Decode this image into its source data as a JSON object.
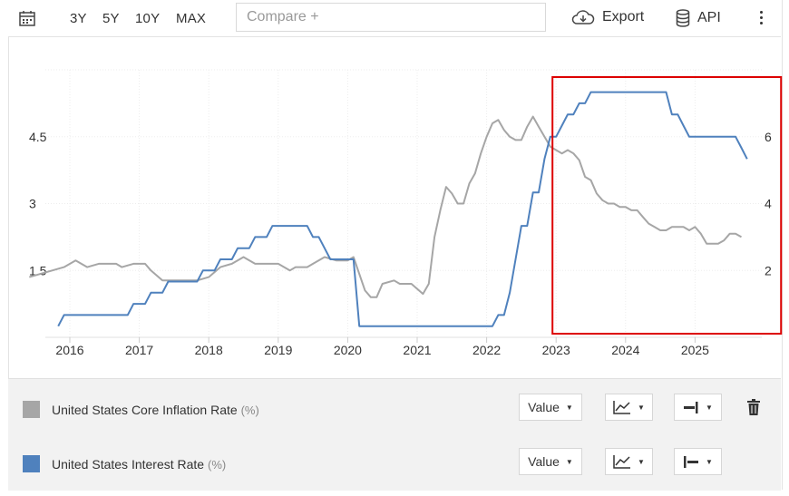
{
  "toolbar": {
    "ranges": [
      "3Y",
      "5Y",
      "10Y",
      "MAX"
    ],
    "compare_placeholder": "Compare +",
    "export_label": "Export",
    "api_label": "API"
  },
  "legend": {
    "series": [
      {
        "name": "United States Core Inflation Rate",
        "unit": "(%)",
        "color": "#a6a6a6",
        "value_label": "Value"
      },
      {
        "name": "United States Interest Rate",
        "unit": "(%)",
        "color": "#4f81bd",
        "value_label": "Value"
      }
    ]
  },
  "highlight_color": "#dd0000",
  "chart_data": {
    "type": "line",
    "x_ticks": [
      "2016",
      "2017",
      "2018",
      "2019",
      "2020",
      "2021",
      "2022",
      "2023",
      "2024",
      "2025"
    ],
    "left_axis": {
      "ticks": [
        "1.5",
        "3",
        "4.5"
      ],
      "range": [
        0,
        6
      ]
    },
    "right_axis": {
      "ticks": [
        "2",
        "4",
        "6"
      ],
      "range": [
        0,
        8
      ]
    },
    "grid": true,
    "highlight_box": {
      "from": "2023-01",
      "to": "2025-11"
    },
    "series": [
      {
        "name": "United States Core Inflation Rate",
        "axis": "right",
        "color": "#a6a6a6",
        "points": [
          [
            "2015-06",
            1.8
          ],
          [
            "2015-12",
            2.1
          ],
          [
            "2016-02",
            2.3
          ],
          [
            "2016-04",
            2.1
          ],
          [
            "2016-06",
            2.2
          ],
          [
            "2016-09",
            2.2
          ],
          [
            "2016-10",
            2.1
          ],
          [
            "2016-12",
            2.2
          ],
          [
            "2017-02",
            2.2
          ],
          [
            "2017-03",
            2.0
          ],
          [
            "2017-05",
            1.7
          ],
          [
            "2017-07",
            1.7
          ],
          [
            "2017-09",
            1.7
          ],
          [
            "2017-11",
            1.7
          ],
          [
            "2018-01",
            1.8
          ],
          [
            "2018-03",
            2.1
          ],
          [
            "2018-05",
            2.2
          ],
          [
            "2018-07",
            2.4
          ],
          [
            "2018-09",
            2.2
          ],
          [
            "2018-11",
            2.2
          ],
          [
            "2019-01",
            2.2
          ],
          [
            "2019-03",
            2.0
          ],
          [
            "2019-04",
            2.1
          ],
          [
            "2019-06",
            2.1
          ],
          [
            "2019-07",
            2.2
          ],
          [
            "2019-09",
            2.4
          ],
          [
            "2019-11",
            2.3
          ],
          [
            "2020-01",
            2.3
          ],
          [
            "2020-02",
            2.4
          ],
          [
            "2020-04",
            1.4
          ],
          [
            "2020-05",
            1.2
          ],
          [
            "2020-06",
            1.2
          ],
          [
            "2020-07",
            1.6
          ],
          [
            "2020-09",
            1.7
          ],
          [
            "2020-10",
            1.6
          ],
          [
            "2020-12",
            1.6
          ],
          [
            "2021-02",
            1.3
          ],
          [
            "2021-03",
            1.6
          ],
          [
            "2021-04",
            3.0
          ],
          [
            "2021-05",
            3.8
          ],
          [
            "2021-06",
            4.5
          ],
          [
            "2021-07",
            4.3
          ],
          [
            "2021-08",
            4.0
          ],
          [
            "2021-09",
            4.0
          ],
          [
            "2021-10",
            4.6
          ],
          [
            "2021-11",
            4.9
          ],
          [
            "2021-12",
            5.5
          ],
          [
            "2022-01",
            6.0
          ],
          [
            "2022-02",
            6.4
          ],
          [
            "2022-03",
            6.5
          ],
          [
            "2022-04",
            6.2
          ],
          [
            "2022-05",
            6.0
          ],
          [
            "2022-06",
            5.9
          ],
          [
            "2022-07",
            5.9
          ],
          [
            "2022-08",
            6.3
          ],
          [
            "2022-09",
            6.6
          ],
          [
            "2022-10",
            6.3
          ],
          [
            "2022-11",
            6.0
          ],
          [
            "2022-12",
            5.7
          ],
          [
            "2023-01",
            5.6
          ],
          [
            "2023-02",
            5.5
          ],
          [
            "2023-03",
            5.6
          ],
          [
            "2023-04",
            5.5
          ],
          [
            "2023-05",
            5.3
          ],
          [
            "2023-06",
            4.8
          ],
          [
            "2023-07",
            4.7
          ],
          [
            "2023-08",
            4.3
          ],
          [
            "2023-09",
            4.1
          ],
          [
            "2023-10",
            4.0
          ],
          [
            "2023-11",
            4.0
          ],
          [
            "2023-12",
            3.9
          ],
          [
            "2024-01",
            3.9
          ],
          [
            "2024-02",
            3.8
          ],
          [
            "2024-03",
            3.8
          ],
          [
            "2024-04",
            3.6
          ],
          [
            "2024-05",
            3.4
          ],
          [
            "2024-06",
            3.3
          ],
          [
            "2024-07",
            3.2
          ],
          [
            "2024-08",
            3.2
          ],
          [
            "2024-09",
            3.3
          ],
          [
            "2024-10",
            3.3
          ],
          [
            "2024-11",
            3.3
          ],
          [
            "2024-12",
            3.2
          ],
          [
            "2025-01",
            3.3
          ],
          [
            "2025-02",
            3.1
          ],
          [
            "2025-03",
            2.8
          ],
          [
            "2025-04",
            2.8
          ],
          [
            "2025-05",
            2.8
          ],
          [
            "2025-06",
            2.9
          ],
          [
            "2025-07",
            3.1
          ],
          [
            "2025-08",
            3.1
          ],
          [
            "2025-09",
            3.0
          ]
        ]
      },
      {
        "name": "United States Interest Rate",
        "axis": "left",
        "color": "#4f81bd",
        "points": [
          [
            "2015-11",
            0.25
          ],
          [
            "2015-12",
            0.5
          ],
          [
            "2016-11",
            0.5
          ],
          [
            "2016-12",
            0.75
          ],
          [
            "2017-02",
            0.75
          ],
          [
            "2017-03",
            1.0
          ],
          [
            "2017-05",
            1.0
          ],
          [
            "2017-06",
            1.25
          ],
          [
            "2017-11",
            1.25
          ],
          [
            "2017-12",
            1.5
          ],
          [
            "2018-02",
            1.5
          ],
          [
            "2018-03",
            1.75
          ],
          [
            "2018-05",
            1.75
          ],
          [
            "2018-06",
            2.0
          ],
          [
            "2018-08",
            2.0
          ],
          [
            "2018-09",
            2.25
          ],
          [
            "2018-11",
            2.25
          ],
          [
            "2018-12",
            2.5
          ],
          [
            "2019-06",
            2.5
          ],
          [
            "2019-07",
            2.25
          ],
          [
            "2019-08",
            2.25
          ],
          [
            "2019-09",
            2.0
          ],
          [
            "2019-10",
            1.75
          ],
          [
            "2020-02",
            1.75
          ],
          [
            "2020-03",
            0.25
          ],
          [
            "2022-02",
            0.25
          ],
          [
            "2022-03",
            0.5
          ],
          [
            "2022-04",
            0.5
          ],
          [
            "2022-05",
            1.0
          ],
          [
            "2022-06",
            1.75
          ],
          [
            "2022-07",
            2.5
          ],
          [
            "2022-08",
            2.5
          ],
          [
            "2022-09",
            3.25
          ],
          [
            "2022-10",
            3.25
          ],
          [
            "2022-11",
            4.0
          ],
          [
            "2022-12",
            4.5
          ],
          [
            "2023-01",
            4.5
          ],
          [
            "2023-02",
            4.75
          ],
          [
            "2023-03",
            5.0
          ],
          [
            "2023-04",
            5.0
          ],
          [
            "2023-05",
            5.25
          ],
          [
            "2023-06",
            5.25
          ],
          [
            "2023-07",
            5.5
          ],
          [
            "2024-08",
            5.5
          ],
          [
            "2024-09",
            5.0
          ],
          [
            "2024-10",
            5.0
          ],
          [
            "2024-11",
            4.75
          ],
          [
            "2024-12",
            4.5
          ],
          [
            "2025-08",
            4.5
          ],
          [
            "2025-09",
            4.25
          ],
          [
            "2025-10",
            4.0
          ]
        ]
      }
    ]
  }
}
